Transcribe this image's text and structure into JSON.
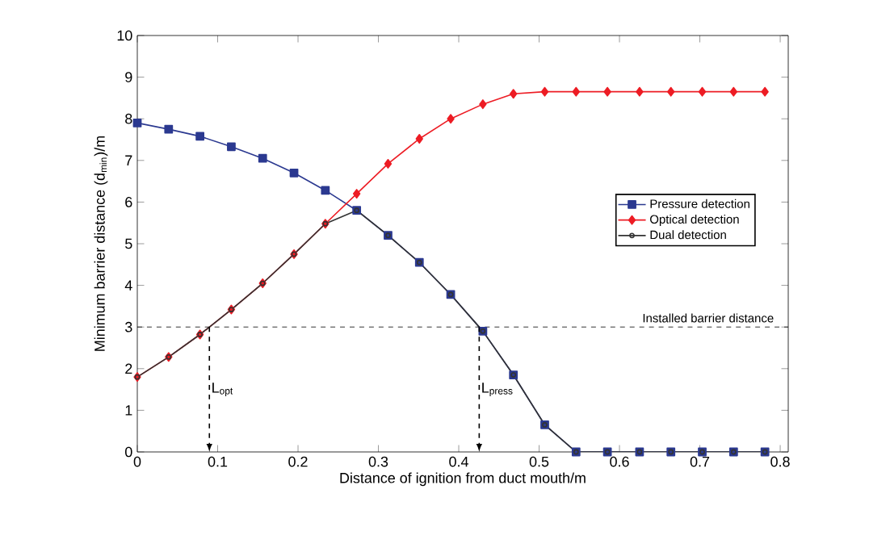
{
  "chart_data": {
    "type": "line",
    "xlabel": "Distance of ignition from duct mouth/m",
    "ylabel": "Minimum barrier distance (d$_{min}$)/m",
    "x": [
      0,
      0.039,
      0.078,
      0.117,
      0.156,
      0.195,
      0.234,
      0.273,
      0.312,
      0.351,
      0.39,
      0.43,
      0.468,
      0.507,
      0.546,
      0.585,
      0.625,
      0.664,
      0.703,
      0.742,
      0.781
    ],
    "series": [
      {
        "name": "Pressure detection",
        "color": "#2b3990",
        "marker": "square",
        "values": [
          7.9,
          7.75,
          7.58,
          7.33,
          7.05,
          6.7,
          6.28,
          5.8,
          5.2,
          4.55,
          3.78,
          2.9,
          1.85,
          0.65,
          0,
          0,
          0,
          0,
          0,
          0,
          0
        ]
      },
      {
        "name": "Optical detection",
        "color": "#ed1c24",
        "marker": "diamond",
        "values": [
          1.8,
          2.28,
          2.82,
          3.42,
          4.05,
          4.75,
          5.48,
          6.2,
          6.92,
          7.52,
          8.0,
          8.35,
          8.6,
          8.65,
          8.65,
          8.65,
          8.65,
          8.65,
          8.65,
          8.65,
          8.65
        ]
      },
      {
        "name": "Dual detection",
        "color": "#333333",
        "marker": "circle",
        "values": [
          1.8,
          2.28,
          2.82,
          3.42,
          4.05,
          4.75,
          5.48,
          5.8,
          5.2,
          4.55,
          3.78,
          2.9,
          1.85,
          0.65,
          0,
          0,
          0,
          0,
          0,
          0,
          0
        ]
      }
    ],
    "xlim": [
      0,
      0.81
    ],
    "ylim": [
      0,
      10
    ],
    "xticks": [
      0,
      0.1,
      0.2,
      0.3,
      0.4,
      0.5,
      0.6,
      0.7,
      0.8
    ],
    "yticks": [
      0,
      1,
      2,
      3,
      4,
      5,
      6,
      7,
      8,
      9,
      10
    ],
    "ref_lines": [
      {
        "axis": "y",
        "value": 3,
        "label": "Installed barrier distance",
        "line_style": "dashed"
      }
    ],
    "annotations": [
      "L$_{opt}$",
      "L$_{press}$"
    ],
    "legend": "right",
    "grid": false
  }
}
